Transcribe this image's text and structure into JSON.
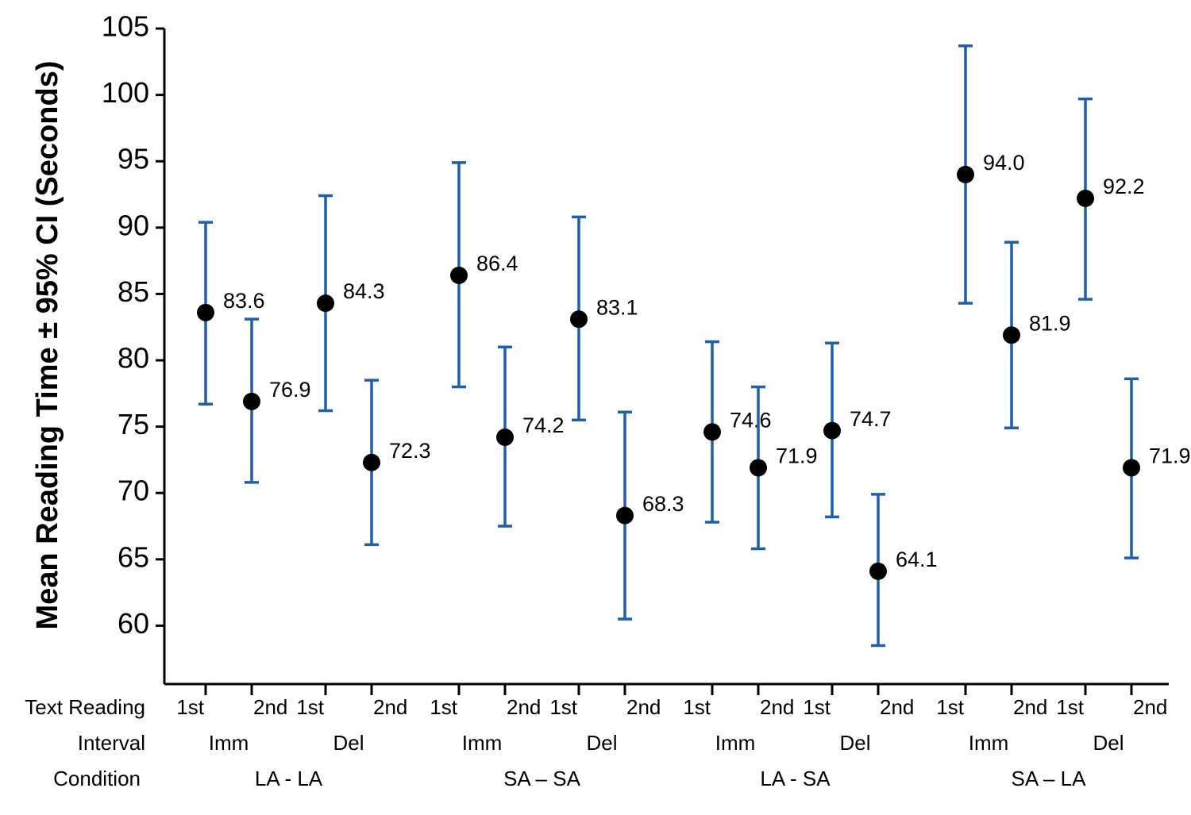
{
  "chart_data": {
    "type": "errorbar",
    "y_label": "Mean Reading Time ± 95% CI (Seconds)",
    "row_labels": [
      "Text Reading",
      "Interval",
      "Condition"
    ],
    "categories": [
      "1st",
      "2nd",
      "1st",
      "2nd",
      "1st",
      "2nd",
      "1st",
      "2nd",
      "1st",
      "2nd",
      "1st",
      "2nd",
      "1st",
      "2nd",
      "1st",
      "2nd"
    ],
    "intervals": [
      "Imm",
      "Del",
      "Imm",
      "Del",
      "Imm",
      "Del",
      "Imm",
      "Del"
    ],
    "conditions": [
      "LA - LA",
      "SA – SA",
      "LA - SA",
      "SA – LA"
    ],
    "values": [
      83.6,
      76.9,
      84.3,
      72.3,
      86.4,
      74.2,
      83.1,
      68.3,
      74.6,
      71.9,
      74.7,
      64.1,
      94.0,
      81.9,
      92.2,
      71.9
    ],
    "value_labels": [
      "83.6",
      "76.9",
      "84.3",
      "72.3",
      "86.4",
      "74.2",
      "83.1",
      "68.3",
      "74.6",
      "71.9",
      "74.7",
      "64.1",
      "94.0",
      "81.9",
      "92.2",
      "71.9"
    ],
    "ci_low": [
      76.7,
      70.8,
      76.2,
      66.1,
      78.0,
      67.5,
      75.5,
      60.5,
      67.8,
      65.8,
      68.2,
      58.5,
      84.3,
      74.9,
      84.6,
      65.1
    ],
    "ci_high": [
      90.4,
      83.1,
      92.4,
      78.5,
      94.9,
      81.0,
      90.8,
      76.1,
      81.4,
      78.0,
      81.3,
      69.9,
      103.7,
      88.9,
      99.7,
      78.6
    ],
    "color": "#000000",
    "error_color": "#1f5fad",
    "ylim": [
      55.6,
      105
    ],
    "yticks": [
      60,
      65,
      70,
      75,
      80,
      85,
      90,
      95,
      100,
      105
    ],
    "grid": false
  }
}
